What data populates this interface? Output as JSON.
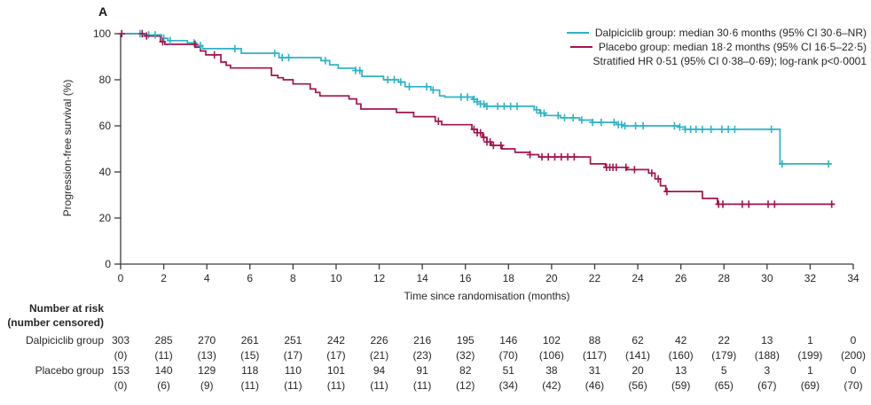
{
  "figure": {
    "panel_label": "A"
  },
  "chart_data": {
    "type": "line",
    "variant": "kaplan_meier_step",
    "title": "",
    "xlabel": "Time since randomisation (months)",
    "ylabel": "Progression-free survival (%)",
    "xlim": [
      0,
      34
    ],
    "ylim": [
      0,
      100
    ],
    "xticks": [
      0,
      2,
      4,
      6,
      8,
      10,
      12,
      14,
      16,
      18,
      20,
      22,
      24,
      26,
      28,
      30,
      32,
      34
    ],
    "yticks": [
      0,
      20,
      40,
      60,
      80,
      100
    ],
    "grid": false,
    "legend_position": "top-right",
    "annotation": "Stratified HR 0·51 (95% CI 0·38–0·69); log-rank p<0·0001",
    "axis_color": "#3c3c3c",
    "series": [
      {
        "name": "Dalpiciclib group",
        "legend_label": "Dalpiciclib group: median 30·6 months (95% CI 30·6–NR)",
        "median_months": "30·6",
        "color": "#2db3c7",
        "steps": [
          [
            0,
            100
          ],
          [
            1.1,
            99.5
          ],
          [
            1.9,
            98
          ],
          [
            2.2,
            97
          ],
          [
            3.1,
            96
          ],
          [
            3.5,
            94.8
          ],
          [
            3.8,
            93.5
          ],
          [
            5.6,
            91.5
          ],
          [
            7.35,
            89.6
          ],
          [
            9.3,
            88.3
          ],
          [
            9.7,
            86.5
          ],
          [
            10.1,
            85
          ],
          [
            10.9,
            84
          ],
          [
            11.2,
            81.5
          ],
          [
            12.2,
            80
          ],
          [
            12.9,
            79
          ],
          [
            13.2,
            77
          ],
          [
            14.4,
            75.5
          ],
          [
            14.8,
            73
          ],
          [
            15.05,
            72.5
          ],
          [
            16.35,
            71.5
          ],
          [
            16.55,
            70.5
          ],
          [
            16.7,
            69.5
          ],
          [
            16.9,
            68.5
          ],
          [
            19.2,
            67
          ],
          [
            19.45,
            65.5
          ],
          [
            19.7,
            64.5
          ],
          [
            20.4,
            63.5
          ],
          [
            21.3,
            62.5
          ],
          [
            21.9,
            61.5
          ],
          [
            23.0,
            60.5
          ],
          [
            23.3,
            60
          ],
          [
            25.9,
            59.5
          ],
          [
            26.2,
            58.5
          ],
          [
            30.6,
            43.5
          ],
          [
            32.95,
            43.5
          ]
        ],
        "censor_marks": [
          0.9,
          1.3,
          1.6,
          2.0,
          2.3,
          3.4,
          3.7,
          5.3,
          7.15,
          7.5,
          7.8,
          9.5,
          10.9,
          11.1,
          12.4,
          12.7,
          13.0,
          13.4,
          14.2,
          14.5,
          15.8,
          16.1,
          16.4,
          16.55,
          16.7,
          16.85,
          17.0,
          17.5,
          17.8,
          18.1,
          18.4,
          19.3,
          19.5,
          19.65,
          20.3,
          20.6,
          21.0,
          21.4,
          21.9,
          22.3,
          22.9,
          23.1,
          23.25,
          23.4,
          23.9,
          24.25,
          25.7,
          25.95,
          26.2,
          26.45,
          26.7,
          27.0,
          27.4,
          27.9,
          28.2,
          28.5,
          30.2,
          30.7,
          32.85
        ]
      },
      {
        "name": "Placebo group",
        "legend_label": "Placebo group: median 18·2 months (95% CI 16·5–22·5)",
        "median_months": "18·2",
        "color": "#a5124d",
        "steps": [
          [
            0,
            100
          ],
          [
            1.1,
            99
          ],
          [
            1.85,
            96.5
          ],
          [
            2.05,
            95.4
          ],
          [
            3.5,
            94.1
          ],
          [
            3.7,
            92.5
          ],
          [
            3.95,
            90.8
          ],
          [
            4.65,
            87.7
          ],
          [
            4.9,
            86.3
          ],
          [
            5.1,
            85.1
          ],
          [
            7.0,
            81.9
          ],
          [
            7.3,
            80.9
          ],
          [
            7.55,
            80
          ],
          [
            8.0,
            78.2
          ],
          [
            8.8,
            76
          ],
          [
            9.05,
            74.5
          ],
          [
            9.25,
            73
          ],
          [
            10.6,
            71.7
          ],
          [
            10.95,
            69.5
          ],
          [
            11.15,
            67.3
          ],
          [
            12.8,
            65.8
          ],
          [
            13.6,
            64
          ],
          [
            14.6,
            62
          ],
          [
            14.9,
            60.5
          ],
          [
            16.3,
            58.5
          ],
          [
            16.55,
            57
          ],
          [
            16.8,
            55
          ],
          [
            17.0,
            53
          ],
          [
            17.2,
            51.5
          ],
          [
            17.7,
            50
          ],
          [
            18.3,
            48.5
          ],
          [
            19.0,
            47.5
          ],
          [
            19.4,
            46.5
          ],
          [
            21.8,
            43.5
          ],
          [
            22.5,
            42
          ],
          [
            23.5,
            41
          ],
          [
            24.5,
            39.5
          ],
          [
            24.8,
            37
          ],
          [
            25.05,
            34
          ],
          [
            25.3,
            31.5
          ],
          [
            27.0,
            28.5
          ],
          [
            27.7,
            26
          ],
          [
            33.1,
            26
          ]
        ],
        "censor_marks": [
          0.05,
          1.0,
          1.2,
          1.95,
          3.45,
          4.35,
          14.75,
          16.4,
          16.55,
          16.7,
          16.85,
          17.0,
          17.15,
          17.3,
          17.65,
          19.0,
          19.55,
          19.85,
          20.15,
          20.45,
          20.75,
          21.05,
          22.55,
          22.7,
          22.85,
          23.0,
          23.45,
          23.85,
          24.65,
          24.95,
          25.35,
          27.75,
          27.95,
          28.85,
          29.15,
          30.05,
          30.35,
          33.0
        ]
      }
    ],
    "risk_table": {
      "title": "Number at risk",
      "subtitle": "(number censored)",
      "times": [
        0,
        2,
        4,
        6,
        8,
        10,
        12,
        14,
        16,
        18,
        20,
        22,
        24,
        26,
        28,
        30,
        32,
        34
      ],
      "rows": [
        {
          "label": "Dalpiciclib group",
          "at_risk": [
            303,
            285,
            270,
            261,
            251,
            242,
            226,
            216,
            195,
            146,
            102,
            88,
            62,
            42,
            22,
            13,
            1,
            0
          ],
          "censored": [
            0,
            11,
            13,
            15,
            17,
            17,
            21,
            23,
            32,
            70,
            106,
            117,
            141,
            160,
            179,
            188,
            199,
            200
          ]
        },
        {
          "label": "Placebo group",
          "at_risk": [
            153,
            140,
            129,
            118,
            110,
            101,
            94,
            91,
            82,
            51,
            38,
            31,
            20,
            13,
            5,
            3,
            1,
            0
          ],
          "censored": [
            0,
            6,
            9,
            11,
            11,
            11,
            11,
            11,
            12,
            34,
            42,
            46,
            56,
            59,
            65,
            67,
            69,
            70
          ]
        }
      ]
    }
  }
}
